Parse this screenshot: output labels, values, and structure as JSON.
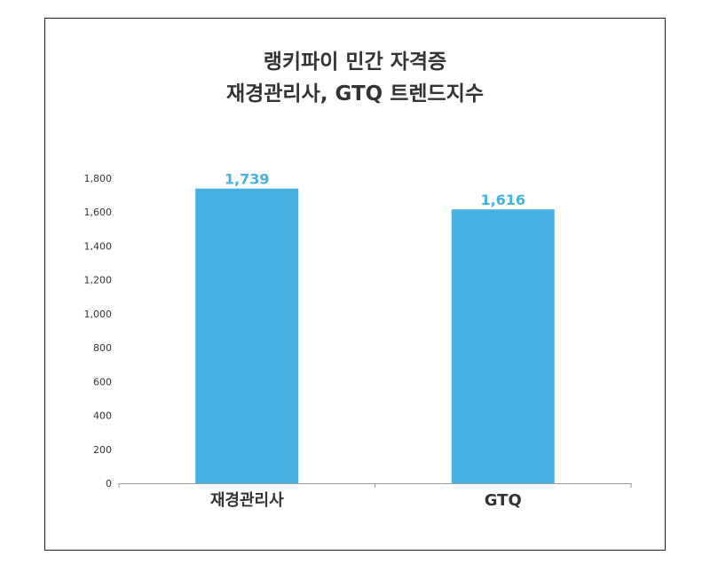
{
  "chart_data": {
    "type": "bar",
    "title_lines": [
      "랭키파이 민간 자격증",
      "재경관리사, GTQ 트렌드지수"
    ],
    "categories": [
      "재경관리사",
      "GTQ"
    ],
    "values": [
      1739,
      1616
    ],
    "value_labels": [
      "1,739",
      "1,616"
    ],
    "y_ticks": [
      "0",
      "200",
      "400",
      "600",
      "800",
      "1,000",
      "1,200",
      "1,400",
      "1,600",
      "1,800"
    ],
    "ylim": [
      0,
      1800
    ],
    "xlabel": "",
    "ylabel": "",
    "grid": false,
    "bar_color": "#45b2e1",
    "label_color": "#45b2e1",
    "axis_color": "#999999"
  }
}
